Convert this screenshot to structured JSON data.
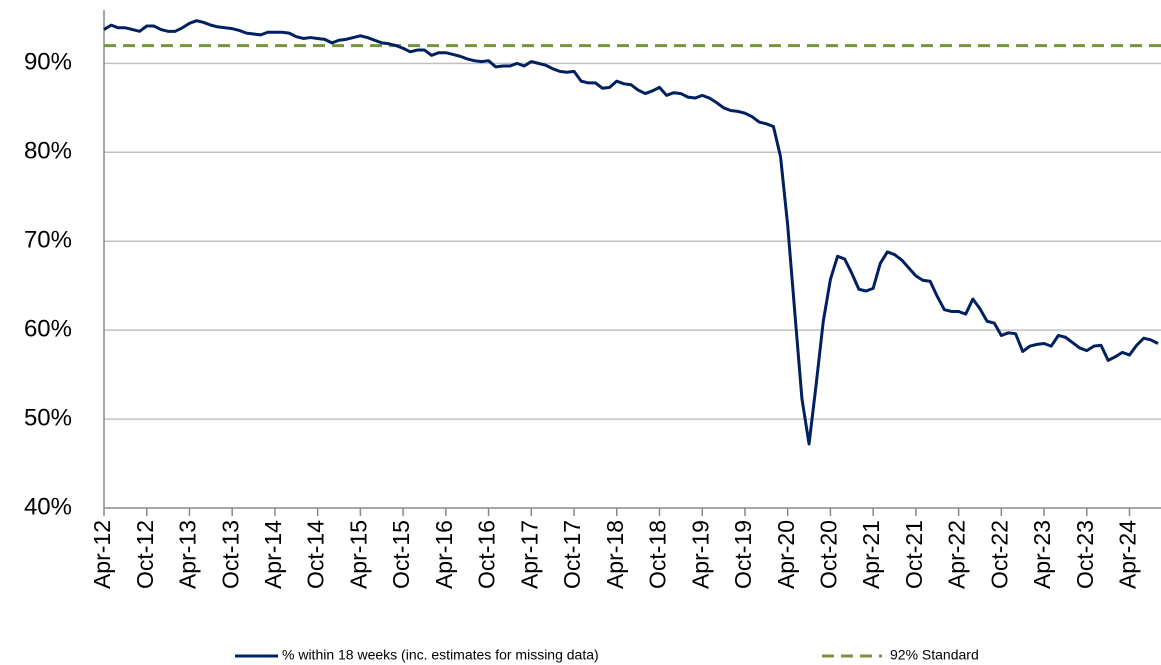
{
  "chart_data": {
    "type": "line",
    "categories": [
      "Apr-12",
      null,
      null,
      null,
      null,
      null,
      "Oct-12",
      null,
      null,
      null,
      null,
      null,
      "Apr-13",
      null,
      null,
      null,
      null,
      null,
      "Oct-13",
      null,
      null,
      null,
      null,
      null,
      "Apr-14",
      null,
      null,
      null,
      null,
      null,
      "Oct-14",
      null,
      null,
      null,
      null,
      null,
      "Apr-15",
      null,
      null,
      null,
      null,
      null,
      "Oct-15",
      null,
      null,
      null,
      null,
      null,
      "Apr-16",
      null,
      null,
      null,
      null,
      null,
      "Oct-16",
      null,
      null,
      null,
      null,
      null,
      "Apr-17",
      null,
      null,
      null,
      null,
      null,
      "Oct-17",
      null,
      null,
      null,
      null,
      null,
      "Apr-18",
      null,
      null,
      null,
      null,
      null,
      "Oct-18",
      null,
      null,
      null,
      null,
      null,
      "Apr-19",
      null,
      null,
      null,
      null,
      null,
      "Oct-19",
      null,
      null,
      null,
      null,
      null,
      "Apr-20",
      null,
      null,
      null,
      null,
      null,
      "Oct-20",
      null,
      null,
      null,
      null,
      null,
      "Apr-21",
      null,
      null,
      null,
      null,
      null,
      "Oct-21",
      null,
      null,
      null,
      null,
      null,
      "Apr-22",
      null,
      null,
      null,
      null,
      null,
      "Oct-22",
      null,
      null,
      null,
      null,
      null,
      "Apr-23",
      null,
      null,
      null,
      null,
      null,
      "Oct-23",
      null,
      null,
      null,
      null,
      null,
      "Apr-24",
      null,
      null,
      null,
      null
    ],
    "series": [
      {
        "name": "% within 18 weeks (inc. estimates for missing data)",
        "color": "#002060",
        "values": [
          93.8,
          94.3,
          94.0,
          94.0,
          93.8,
          93.6,
          94.2,
          94.2,
          93.8,
          93.6,
          93.6,
          94.0,
          94.5,
          94.8,
          94.6,
          94.3,
          94.1,
          94.0,
          93.9,
          93.7,
          93.4,
          93.3,
          93.2,
          93.5,
          93.5,
          93.5,
          93.4,
          93.0,
          92.8,
          92.9,
          92.8,
          92.7,
          92.3,
          92.6,
          92.7,
          92.9,
          93.1,
          92.9,
          92.6,
          92.3,
          92.2,
          92.0,
          91.7,
          91.3,
          91.5,
          91.5,
          90.9,
          91.2,
          91.2,
          91.0,
          90.8,
          90.5,
          90.3,
          90.2,
          90.3,
          89.6,
          89.7,
          89.7,
          90.0,
          89.7,
          90.2,
          90.0,
          89.8,
          89.4,
          89.1,
          89.0,
          89.1,
          88.0,
          87.8,
          87.8,
          87.2,
          87.3,
          88.0,
          87.7,
          87.6,
          87.0,
          86.6,
          86.9,
          87.3,
          86.4,
          86.7,
          86.6,
          86.2,
          86.1,
          86.4,
          86.1,
          85.6,
          85.0,
          84.7,
          84.6,
          84.4,
          84.0,
          83.4,
          83.2,
          82.9,
          79.5,
          71.8,
          62.0,
          52.3,
          47.2,
          53.9,
          61.0,
          65.7,
          68.3,
          68.0,
          66.4,
          64.6,
          64.4,
          64.7,
          67.5,
          68.8,
          68.5,
          67.9,
          67.0,
          66.1,
          65.6,
          65.5,
          63.8,
          62.3,
          62.1,
          62.1,
          61.8,
          63.5,
          62.4,
          61.0,
          60.8,
          59.4,
          59.7,
          59.6,
          57.6,
          58.2,
          58.4,
          58.5,
          58.2,
          59.4,
          59.2,
          58.6,
          58.0,
          57.7,
          58.2,
          58.3,
          56.6,
          57.0,
          57.5,
          57.2,
          58.3,
          59.1,
          58.9,
          58.5
        ]
      }
    ],
    "reference_line": {
      "name": "92% Standard",
      "value": 92,
      "color": "#77933c"
    },
    "ylim": [
      40,
      96
    ],
    "yticks": [
      {
        "value": 40,
        "label": "40%"
      },
      {
        "value": 50,
        "label": "50%"
      },
      {
        "value": 60,
        "label": "60%"
      },
      {
        "value": 70,
        "label": "70%"
      },
      {
        "value": 80,
        "label": "80%"
      },
      {
        "value": 90,
        "label": "90%"
      }
    ],
    "grid": true
  }
}
